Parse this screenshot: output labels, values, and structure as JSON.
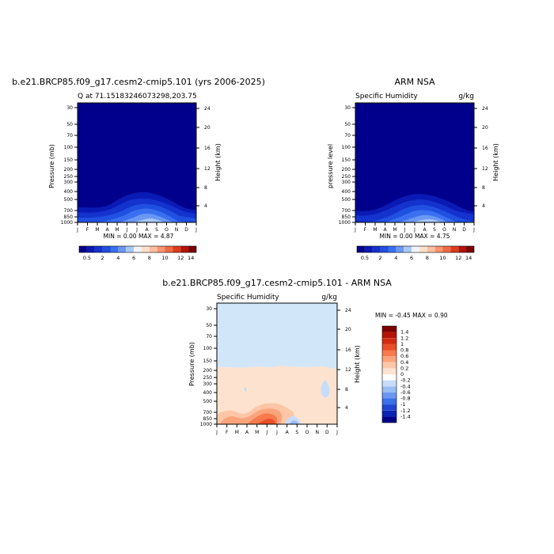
{
  "panels": [
    {
      "id": "model",
      "title": "b.e21.BRCP85.f09_g17.cesm2-cmip5.101 (yrs 2006-2025)",
      "left_label": "Q  at 71.15183246073298,203.75",
      "right_label": "",
      "ylabel_left": "Pressure (mb)",
      "ylabel_right": "Height (km)",
      "minmax": "MIN =    0.00 MAX =    4.87",
      "field_type": "q"
    },
    {
      "id": "obs",
      "title": "ARM NSA",
      "left_label": "Specific Humidity",
      "right_label": "g/kg",
      "ylabel_left": "pressure level",
      "ylabel_right": "Height (km)",
      "minmax": "MIN =    0.00 MAX =    4.75",
      "field_type": "q"
    },
    {
      "id": "diff",
      "title": "b.e21.BRCP85.f09_g17.cesm2-cmip5.101 - ARM NSA",
      "left_label": "Specific Humidity",
      "right_label": "g/kg",
      "ylabel_left": "Pressure (mb)",
      "ylabel_right": "Height (km)",
      "minmax": "MIN =   -0.45 MAX =    0.90",
      "field_type": "diff"
    }
  ],
  "chart_data": [
    {
      "type": "heatmap",
      "title": "b.e21.BRCP85.f09_g17.cesm2-cmip5.101 (yrs 2006-2025)",
      "x_ticks": [
        "J",
        "F",
        "M",
        "A",
        "M",
        "J",
        "J",
        "A",
        "S",
        "O",
        "N",
        "D",
        "J"
      ],
      "y_ticks_pressure": [
        30,
        50,
        70,
        100,
        150,
        200,
        250,
        300,
        400,
        500,
        700,
        850,
        1000
      ],
      "y_ticks_height": [
        4,
        8,
        12,
        16,
        20,
        24
      ],
      "ylim_pressure": [
        1000,
        30
      ],
      "colorbar_labels": [
        "0.5",
        "2",
        "4",
        "6",
        "8",
        "10",
        "12",
        "14"
      ],
      "min": 0.0,
      "max": 4.87
    },
    {
      "type": "heatmap",
      "title": "ARM NSA",
      "x_ticks": [
        "J",
        "F",
        "M",
        "A",
        "M",
        "J",
        "J",
        "A",
        "S",
        "O",
        "N",
        "D",
        "J"
      ],
      "y_ticks_pressure": [
        30,
        50,
        70,
        100,
        150,
        200,
        250,
        300,
        400,
        500,
        700,
        850,
        1000
      ],
      "y_ticks_height": [
        4,
        8,
        12,
        16,
        20,
        24
      ],
      "ylim_pressure": [
        1000,
        30
      ],
      "colorbar_labels": [
        "0.5",
        "2",
        "4",
        "6",
        "8",
        "10",
        "12",
        "14"
      ],
      "min": 0.0,
      "max": 4.75
    },
    {
      "type": "heatmap",
      "title": "b.e21.BRCP85.f09_g17.cesm2-cmip5.101 - ARM NSA",
      "x_ticks": [
        "J",
        "F",
        "M",
        "A",
        "M",
        "J",
        "J",
        "A",
        "S",
        "O",
        "N",
        "D",
        "J"
      ],
      "y_ticks_pressure": [
        30,
        50,
        70,
        100,
        150,
        200,
        250,
        300,
        400,
        500,
        700,
        850,
        1000
      ],
      "y_ticks_height": [
        4,
        8,
        12,
        16,
        20,
        24
      ],
      "ylim_pressure": [
        1000,
        30
      ],
      "colorbar_labels": [
        "1.4",
        "1.2",
        "1",
        "0.8",
        "0.6",
        "0.4",
        "0.2",
        "0",
        "-0.2",
        "-0.4",
        "-0.6",
        "-0.8",
        "-1",
        "-1.2",
        "-1.4"
      ],
      "min": -0.45,
      "max": 0.9
    }
  ],
  "colors": {
    "q_scale": [
      "#00008c",
      "#0a1ab4",
      "#1432cd",
      "#2050e1",
      "#3a70f0",
      "#6a98f5",
      "#a8c8fa",
      "#f0f4ff",
      "#fde0cc",
      "#fcbfa0",
      "#f9946e",
      "#f06a44",
      "#dc3c1c",
      "#b41408",
      "#7c0000"
    ],
    "diff_scale": [
      "#7c0000",
      "#b41408",
      "#d22a10",
      "#ea4e28",
      "#f77a4c",
      "#fba47c",
      "#fdc6a6",
      "#fde3cf",
      "#ffffff",
      "#c8dcfa",
      "#98bef4",
      "#6a98f0",
      "#3a70e8",
      "#1e46d2",
      "#0a24b4",
      "#00008c"
    ],
    "diff_background": "#d2e6fa",
    "diff_lower": "#fde3cf"
  }
}
